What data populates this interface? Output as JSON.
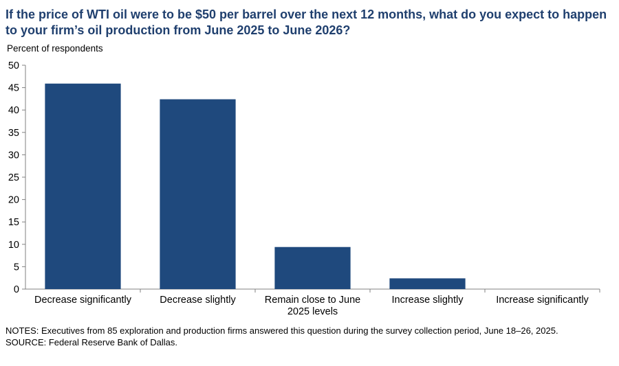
{
  "title": "If the price of WTI oil were to be $50 per barrel over the next 12 months, what do you expect to happen to your firm’s oil production from June 2025 to June 2026?",
  "notes": "NOTES: Executives from 85 exploration and production firms answered this question during the survey collection period, June 18–26, 2025.",
  "source": "SOURCE: Federal Reserve Bank of Dallas.",
  "colors": {
    "bar": "#1f497d",
    "title": "#1f3f6e",
    "axis": "#808080"
  },
  "chart_data": {
    "type": "bar",
    "title": "",
    "xlabel": "",
    "ylabel": "Percent of respondents",
    "ylim": [
      0,
      50
    ],
    "yticks": [
      0,
      5,
      10,
      15,
      20,
      25,
      30,
      35,
      40,
      45,
      50
    ],
    "categories": [
      [
        "Decrease significantly"
      ],
      [
        "Decrease slightly"
      ],
      [
        "Remain close to June",
        "2025 levels"
      ],
      [
        "Increase slightly"
      ],
      [
        "Increase significantly"
      ]
    ],
    "values": [
      45.9,
      42.4,
      9.4,
      2.4,
      0
    ],
    "grid": false,
    "legend": "none"
  }
}
